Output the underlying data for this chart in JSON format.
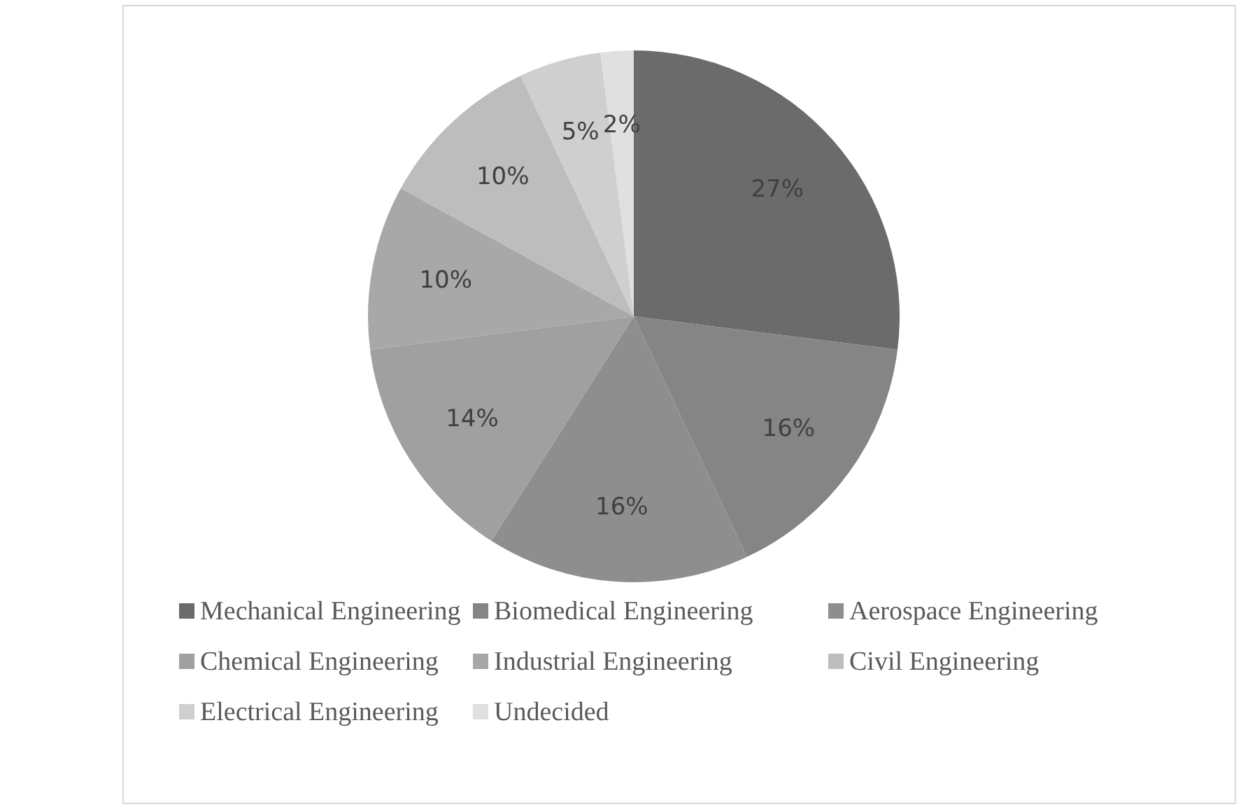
{
  "chart_data": {
    "type": "pie",
    "categories": [
      "Mechanical Engineering",
      "Biomedical Engineering",
      "Aerospace Engineering",
      "Chemical Engineering",
      "Industrial Engineering",
      "Civil Engineering",
      "Electrical Engineering",
      "Undecided"
    ],
    "values": [
      27,
      16,
      16,
      14,
      10,
      10,
      5,
      2
    ],
    "colors": [
      "#6b6b6b",
      "#858585",
      "#8e8e8e",
      "#a0a0a0",
      "#a8a8a8",
      "#bdbdbd",
      "#cfcfcf",
      "#e0e0e0"
    ],
    "value_labels": [
      "27%",
      "16%",
      "16%",
      "14%",
      "10%",
      "10%",
      "5%",
      "2%"
    ],
    "legend": "bottom"
  }
}
